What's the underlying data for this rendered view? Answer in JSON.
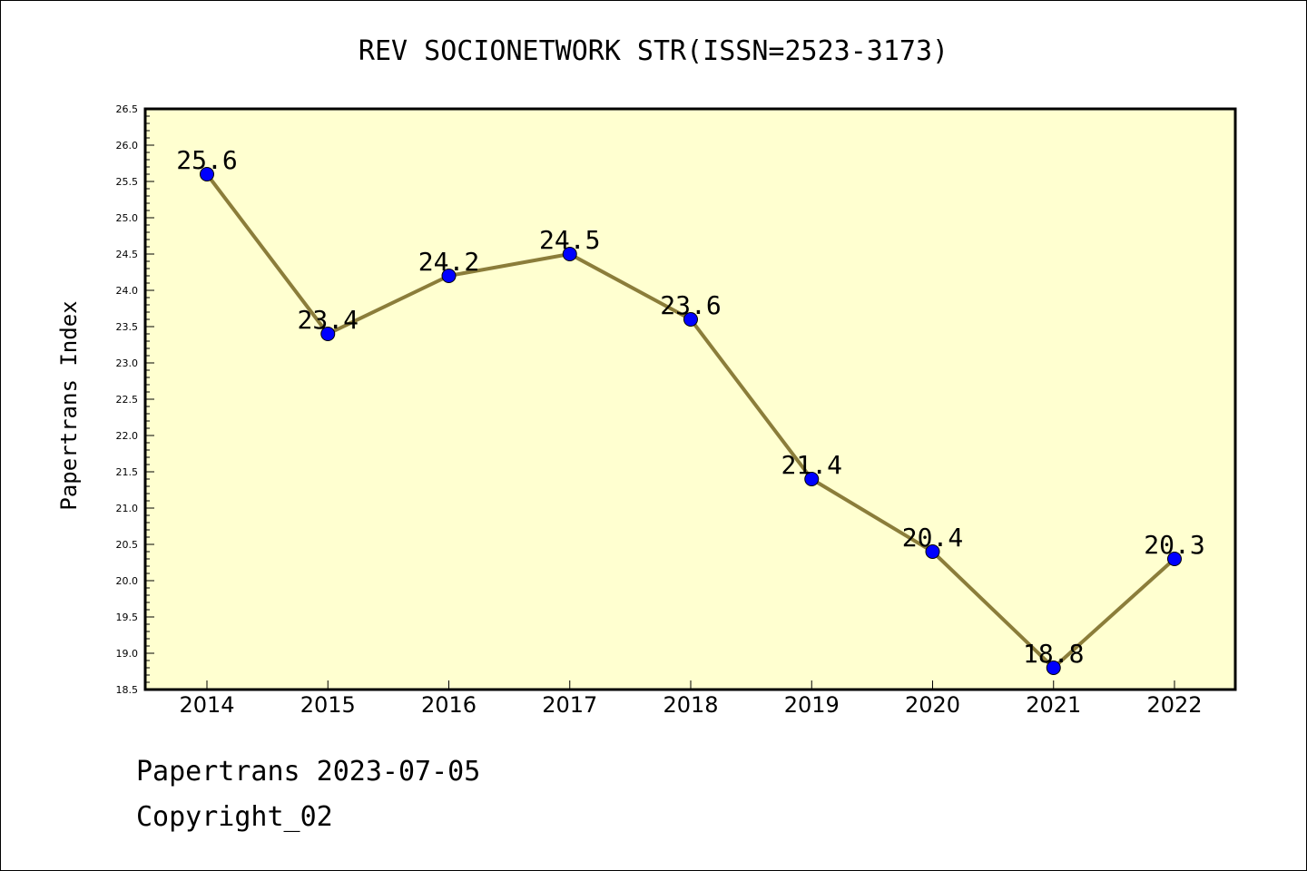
{
  "chart_data": {
    "type": "line",
    "title": "REV SOCIONETWORK STR(ISSN=2523-3173)",
    "xlabel": "",
    "ylabel": "Papertrans Index",
    "categories": [
      "2014",
      "2015",
      "2016",
      "2017",
      "2018",
      "2019",
      "2020",
      "2021",
      "2022"
    ],
    "series": [
      {
        "values": [
          25.6,
          23.4,
          24.2,
          24.5,
          23.6,
          21.4,
          20.4,
          18.8,
          20.3
        ]
      }
    ],
    "data_labels": [
      "25.6",
      "23.4",
      "24.2",
      "24.5",
      "23.6",
      "21.4",
      "20.4",
      "18.8",
      "20.3"
    ],
    "ylim": [
      18.5,
      26.5
    ],
    "ytick_step": 0.5,
    "yticks": [
      "18.5",
      "19.0",
      "19.5",
      "20.0",
      "20.5",
      "21.0",
      "21.5",
      "22.0",
      "22.5",
      "23.0",
      "23.5",
      "24.0",
      "24.5",
      "25.0",
      "25.5",
      "26.0",
      "26.5"
    ],
    "grid": false,
    "legend": "none",
    "colors": {
      "plot_background": "#ffffd0",
      "line": "#8b7d3a",
      "marker_fill": "#0000ff",
      "marker_edge": "#000000"
    }
  },
  "footer": {
    "date_line": "Papertrans 2023-07-05",
    "copyright_line": "Copyright_02"
  }
}
